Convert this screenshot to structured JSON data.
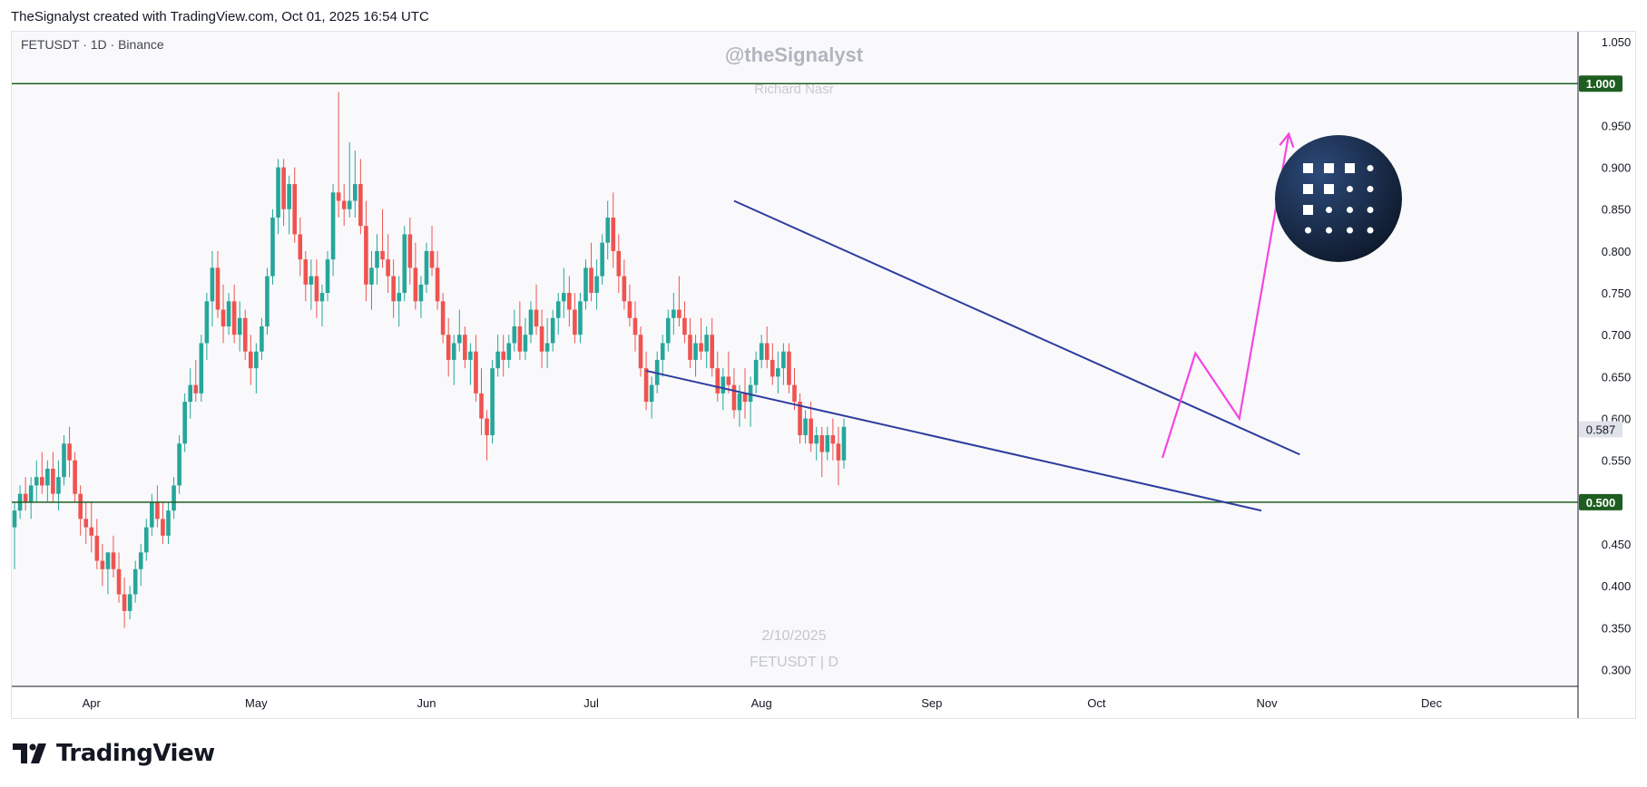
{
  "header": {
    "caption": "TheSignalyst created with TradingView.com, Oct 01, 2025 16:54 UTC"
  },
  "footer": {
    "brand": "TradingView"
  },
  "chart_data": {
    "type": "candlestick",
    "symbol_info": "FETUSDT · 1D · Binance",
    "watermark_handle": "@theSignalyst",
    "watermark_author": "Richard Nasr",
    "watermark_date": "2/10/2025",
    "watermark_symbol": "FETUSDT | D",
    "y_axis": {
      "min": 0.28,
      "max": 1.06,
      "ticks": [
        "1.050",
        "0.950",
        "0.900",
        "0.850",
        "0.800",
        "0.750",
        "0.700",
        "0.650",
        "0.600",
        "0.550",
        "0.450",
        "0.400",
        "0.350",
        "0.300"
      ]
    },
    "x_axis": {
      "ticks": [
        {
          "label": "Apr",
          "index": 14
        },
        {
          "label": "May",
          "index": 44
        },
        {
          "label": "Jun",
          "index": 75
        },
        {
          "label": "Jul",
          "index": 105
        },
        {
          "label": "Aug",
          "index": 136
        },
        {
          "label": "Sep",
          "index": 167
        },
        {
          "label": "Oct",
          "index": 197
        },
        {
          "label": "Nov",
          "index": 228
        },
        {
          "label": "Dec",
          "index": 258
        }
      ],
      "total_slots": 285
    },
    "horizontal_levels": [
      {
        "value": 1.0,
        "label": "1.000",
        "color": "#1e5e20"
      },
      {
        "value": 0.5,
        "label": "0.500",
        "color": "#1e5e20"
      }
    ],
    "current_price": {
      "value": 0.587,
      "label": "0.587"
    },
    "wedge_lines": [
      {
        "from": {
          "index": 131,
          "price": 0.86
        },
        "to": {
          "index": 234,
          "price": 0.557
        }
      },
      {
        "from": {
          "index": 115,
          "price": 0.657
        },
        "to": {
          "index": 227,
          "price": 0.49
        }
      }
    ],
    "projection_path": [
      {
        "index": 209,
        "price": 0.553
      },
      {
        "index": 215,
        "price": 0.678
      },
      {
        "index": 223,
        "price": 0.6
      },
      {
        "index": 232,
        "price": 0.94
      }
    ],
    "colors": {
      "up": "#26a69a",
      "down": "#ef5350",
      "wedge": "#2e3d9e",
      "projection": "#f545e0",
      "level": "#1e5e20"
    },
    "candles": [
      [
        0.47,
        0.5,
        0.42,
        0.49
      ],
      [
        0.49,
        0.52,
        0.48,
        0.51
      ],
      [
        0.51,
        0.53,
        0.49,
        0.5
      ],
      [
        0.5,
        0.53,
        0.48,
        0.52
      ],
      [
        0.52,
        0.55,
        0.5,
        0.53
      ],
      [
        0.53,
        0.56,
        0.51,
        0.52
      ],
      [
        0.52,
        0.55,
        0.5,
        0.54
      ],
      [
        0.54,
        0.56,
        0.5,
        0.51
      ],
      [
        0.51,
        0.55,
        0.49,
        0.53
      ],
      [
        0.53,
        0.58,
        0.52,
        0.57
      ],
      [
        0.57,
        0.59,
        0.53,
        0.55
      ],
      [
        0.55,
        0.56,
        0.5,
        0.51
      ],
      [
        0.51,
        0.52,
        0.46,
        0.48
      ],
      [
        0.48,
        0.5,
        0.45,
        0.47
      ],
      [
        0.47,
        0.5,
        0.44,
        0.46
      ],
      [
        0.46,
        0.48,
        0.42,
        0.43
      ],
      [
        0.43,
        0.45,
        0.4,
        0.42
      ],
      [
        0.42,
        0.44,
        0.39,
        0.44
      ],
      [
        0.44,
        0.46,
        0.41,
        0.42
      ],
      [
        0.42,
        0.44,
        0.38,
        0.39
      ],
      [
        0.39,
        0.41,
        0.35,
        0.37
      ],
      [
        0.37,
        0.4,
        0.36,
        0.39
      ],
      [
        0.39,
        0.43,
        0.38,
        0.42
      ],
      [
        0.42,
        0.45,
        0.4,
        0.44
      ],
      [
        0.44,
        0.48,
        0.43,
        0.47
      ],
      [
        0.47,
        0.51,
        0.46,
        0.5
      ],
      [
        0.5,
        0.52,
        0.47,
        0.48
      ],
      [
        0.48,
        0.5,
        0.45,
        0.46
      ],
      [
        0.46,
        0.5,
        0.45,
        0.49
      ],
      [
        0.49,
        0.53,
        0.48,
        0.52
      ],
      [
        0.52,
        0.58,
        0.51,
        0.57
      ],
      [
        0.57,
        0.63,
        0.56,
        0.62
      ],
      [
        0.62,
        0.66,
        0.6,
        0.64
      ],
      [
        0.64,
        0.67,
        0.62,
        0.63
      ],
      [
        0.63,
        0.7,
        0.62,
        0.69
      ],
      [
        0.69,
        0.75,
        0.67,
        0.74
      ],
      [
        0.74,
        0.8,
        0.71,
        0.78
      ],
      [
        0.78,
        0.8,
        0.72,
        0.73
      ],
      [
        0.73,
        0.76,
        0.69,
        0.71
      ],
      [
        0.71,
        0.75,
        0.7,
        0.74
      ],
      [
        0.74,
        0.76,
        0.69,
        0.7
      ],
      [
        0.7,
        0.74,
        0.68,
        0.72
      ],
      [
        0.72,
        0.73,
        0.67,
        0.68
      ],
      [
        0.68,
        0.7,
        0.64,
        0.66
      ],
      [
        0.66,
        0.69,
        0.63,
        0.68
      ],
      [
        0.68,
        0.72,
        0.67,
        0.71
      ],
      [
        0.71,
        0.78,
        0.7,
        0.77
      ],
      [
        0.77,
        0.85,
        0.76,
        0.84
      ],
      [
        0.84,
        0.91,
        0.82,
        0.9
      ],
      [
        0.9,
        0.91,
        0.83,
        0.85
      ],
      [
        0.85,
        0.89,
        0.82,
        0.88
      ],
      [
        0.88,
        0.9,
        0.81,
        0.82
      ],
      [
        0.82,
        0.84,
        0.77,
        0.79
      ],
      [
        0.79,
        0.8,
        0.74,
        0.76
      ],
      [
        0.76,
        0.79,
        0.73,
        0.77
      ],
      [
        0.77,
        0.79,
        0.72,
        0.74
      ],
      [
        0.74,
        0.76,
        0.71,
        0.75
      ],
      [
        0.75,
        0.8,
        0.74,
        0.79
      ],
      [
        0.79,
        0.88,
        0.77,
        0.87
      ],
      [
        0.87,
        0.99,
        0.84,
        0.86
      ],
      [
        0.86,
        0.88,
        0.83,
        0.85
      ],
      [
        0.85,
        0.93,
        0.84,
        0.86
      ],
      [
        0.86,
        0.92,
        0.84,
        0.88
      ],
      [
        0.88,
        0.91,
        0.82,
        0.83
      ],
      [
        0.83,
        0.86,
        0.74,
        0.76
      ],
      [
        0.76,
        0.8,
        0.73,
        0.78
      ],
      [
        0.78,
        0.82,
        0.76,
        0.8
      ],
      [
        0.8,
        0.85,
        0.78,
        0.79
      ],
      [
        0.79,
        0.82,
        0.75,
        0.77
      ],
      [
        0.77,
        0.79,
        0.72,
        0.74
      ],
      [
        0.74,
        0.77,
        0.71,
        0.75
      ],
      [
        0.75,
        0.83,
        0.74,
        0.82
      ],
      [
        0.82,
        0.84,
        0.76,
        0.78
      ],
      [
        0.78,
        0.81,
        0.73,
        0.74
      ],
      [
        0.74,
        0.77,
        0.72,
        0.76
      ],
      [
        0.76,
        0.81,
        0.75,
        0.8
      ],
      [
        0.8,
        0.83,
        0.77,
        0.78
      ],
      [
        0.78,
        0.8,
        0.73,
        0.74
      ],
      [
        0.74,
        0.75,
        0.69,
        0.7
      ],
      [
        0.7,
        0.72,
        0.65,
        0.67
      ],
      [
        0.67,
        0.7,
        0.64,
        0.69
      ],
      [
        0.69,
        0.73,
        0.68,
        0.7
      ],
      [
        0.7,
        0.71,
        0.66,
        0.67
      ],
      [
        0.67,
        0.69,
        0.64,
        0.68
      ],
      [
        0.68,
        0.7,
        0.62,
        0.63
      ],
      [
        0.63,
        0.66,
        0.58,
        0.6
      ],
      [
        0.6,
        0.61,
        0.55,
        0.58
      ],
      [
        0.58,
        0.67,
        0.57,
        0.66
      ],
      [
        0.66,
        0.7,
        0.65,
        0.68
      ],
      [
        0.68,
        0.7,
        0.65,
        0.67
      ],
      [
        0.67,
        0.7,
        0.66,
        0.69
      ],
      [
        0.69,
        0.73,
        0.68,
        0.71
      ],
      [
        0.71,
        0.74,
        0.67,
        0.68
      ],
      [
        0.68,
        0.72,
        0.67,
        0.7
      ],
      [
        0.7,
        0.74,
        0.69,
        0.73
      ],
      [
        0.73,
        0.76,
        0.7,
        0.71
      ],
      [
        0.71,
        0.73,
        0.66,
        0.68
      ],
      [
        0.68,
        0.72,
        0.66,
        0.69
      ],
      [
        0.69,
        0.73,
        0.68,
        0.72
      ],
      [
        0.72,
        0.75,
        0.7,
        0.74
      ],
      [
        0.74,
        0.78,
        0.72,
        0.75
      ],
      [
        0.75,
        0.77,
        0.71,
        0.73
      ],
      [
        0.73,
        0.75,
        0.69,
        0.7
      ],
      [
        0.7,
        0.75,
        0.69,
        0.74
      ],
      [
        0.74,
        0.79,
        0.73,
        0.78
      ],
      [
        0.78,
        0.81,
        0.74,
        0.75
      ],
      [
        0.75,
        0.79,
        0.73,
        0.77
      ],
      [
        0.77,
        0.82,
        0.76,
        0.81
      ],
      [
        0.81,
        0.86,
        0.79,
        0.84
      ],
      [
        0.84,
        0.87,
        0.78,
        0.8
      ],
      [
        0.8,
        0.82,
        0.75,
        0.77
      ],
      [
        0.77,
        0.79,
        0.73,
        0.74
      ],
      [
        0.74,
        0.76,
        0.71,
        0.72
      ],
      [
        0.72,
        0.74,
        0.68,
        0.7
      ],
      [
        0.7,
        0.71,
        0.65,
        0.66
      ],
      [
        0.66,
        0.68,
        0.61,
        0.62
      ],
      [
        0.62,
        0.65,
        0.6,
        0.64
      ],
      [
        0.64,
        0.68,
        0.63,
        0.67
      ],
      [
        0.67,
        0.7,
        0.65,
        0.69
      ],
      [
        0.69,
        0.73,
        0.68,
        0.72
      ],
      [
        0.72,
        0.75,
        0.7,
        0.73
      ],
      [
        0.73,
        0.77,
        0.71,
        0.72
      ],
      [
        0.72,
        0.74,
        0.69,
        0.7
      ],
      [
        0.7,
        0.72,
        0.66,
        0.67
      ],
      [
        0.67,
        0.7,
        0.65,
        0.69
      ],
      [
        0.69,
        0.72,
        0.67,
        0.68
      ],
      [
        0.68,
        0.71,
        0.66,
        0.7
      ],
      [
        0.7,
        0.72,
        0.65,
        0.66
      ],
      [
        0.66,
        0.68,
        0.62,
        0.63
      ],
      [
        0.63,
        0.66,
        0.61,
        0.65
      ],
      [
        0.65,
        0.68,
        0.63,
        0.64
      ],
      [
        0.64,
        0.66,
        0.6,
        0.61
      ],
      [
        0.61,
        0.64,
        0.59,
        0.63
      ],
      [
        0.63,
        0.66,
        0.6,
        0.62
      ],
      [
        0.62,
        0.65,
        0.59,
        0.64
      ],
      [
        0.64,
        0.68,
        0.63,
        0.67
      ],
      [
        0.67,
        0.7,
        0.66,
        0.69
      ],
      [
        0.69,
        0.71,
        0.66,
        0.67
      ],
      [
        0.67,
        0.69,
        0.64,
        0.65
      ],
      [
        0.65,
        0.68,
        0.63,
        0.66
      ],
      [
        0.66,
        0.69,
        0.64,
        0.68
      ],
      [
        0.68,
        0.69,
        0.63,
        0.64
      ],
      [
        0.64,
        0.66,
        0.61,
        0.62
      ],
      [
        0.62,
        0.63,
        0.57,
        0.58
      ],
      [
        0.58,
        0.61,
        0.57,
        0.6
      ],
      [
        0.6,
        0.62,
        0.56,
        0.57
      ],
      [
        0.57,
        0.59,
        0.55,
        0.58
      ],
      [
        0.58,
        0.59,
        0.53,
        0.56
      ],
      [
        0.56,
        0.59,
        0.55,
        0.58
      ],
      [
        0.58,
        0.6,
        0.55,
        0.57
      ],
      [
        0.57,
        0.59,
        0.52,
        0.55
      ],
      [
        0.55,
        0.6,
        0.54,
        0.59
      ]
    ]
  }
}
